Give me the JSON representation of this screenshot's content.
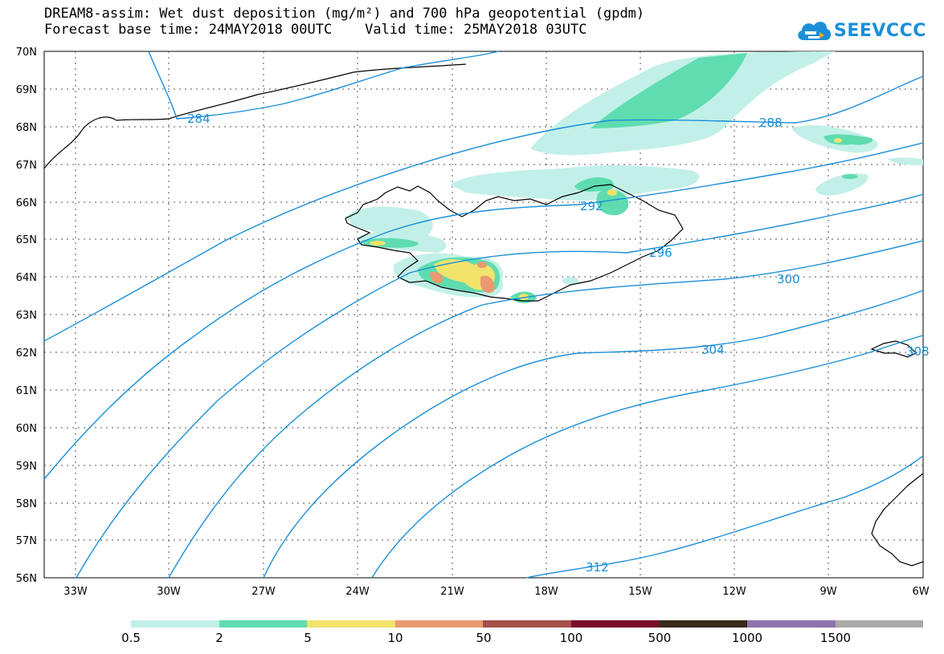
{
  "header": {
    "title_line1": "DREAM8-assim: Wet dust deposition (mg/m²) and 700 hPa geopotential (gpdm)",
    "title_line2": "Forecast base time: 24MAY2018 00UTC    Valid time: 25MAY2018 03UTC"
  },
  "logo": {
    "text": "SEEVCCC",
    "icon": "cloud-icon"
  },
  "map": {
    "lon_ticks": [
      "33W",
      "30W",
      "27W",
      "24W",
      "21W",
      "18W",
      "15W",
      "12W",
      "9W",
      "6W"
    ],
    "lat_ticks": [
      "70N",
      "69N",
      "68N",
      "67N",
      "66N",
      "65N",
      "64N",
      "63N",
      "62N",
      "61N",
      "60N",
      "59N",
      "58N",
      "57N",
      "56N"
    ],
    "contour_labels": [
      "284",
      "288",
      "292",
      "296",
      "300",
      "304",
      "308",
      "312"
    ],
    "colors": {
      "contour": "#1a8fd8",
      "coast": "#000000"
    }
  },
  "legend": {
    "colors": [
      "#c2f0e8",
      "#5fdcb0",
      "#f2e36a",
      "#e99a70",
      "#a6504a",
      "#7b0c2c",
      "#3a2a1a",
      "#8f73ad",
      "#aaaaaa"
    ],
    "labels": [
      "0.5",
      "2",
      "5",
      "10",
      "50",
      "100",
      "500",
      "1000",
      "1500"
    ]
  }
}
